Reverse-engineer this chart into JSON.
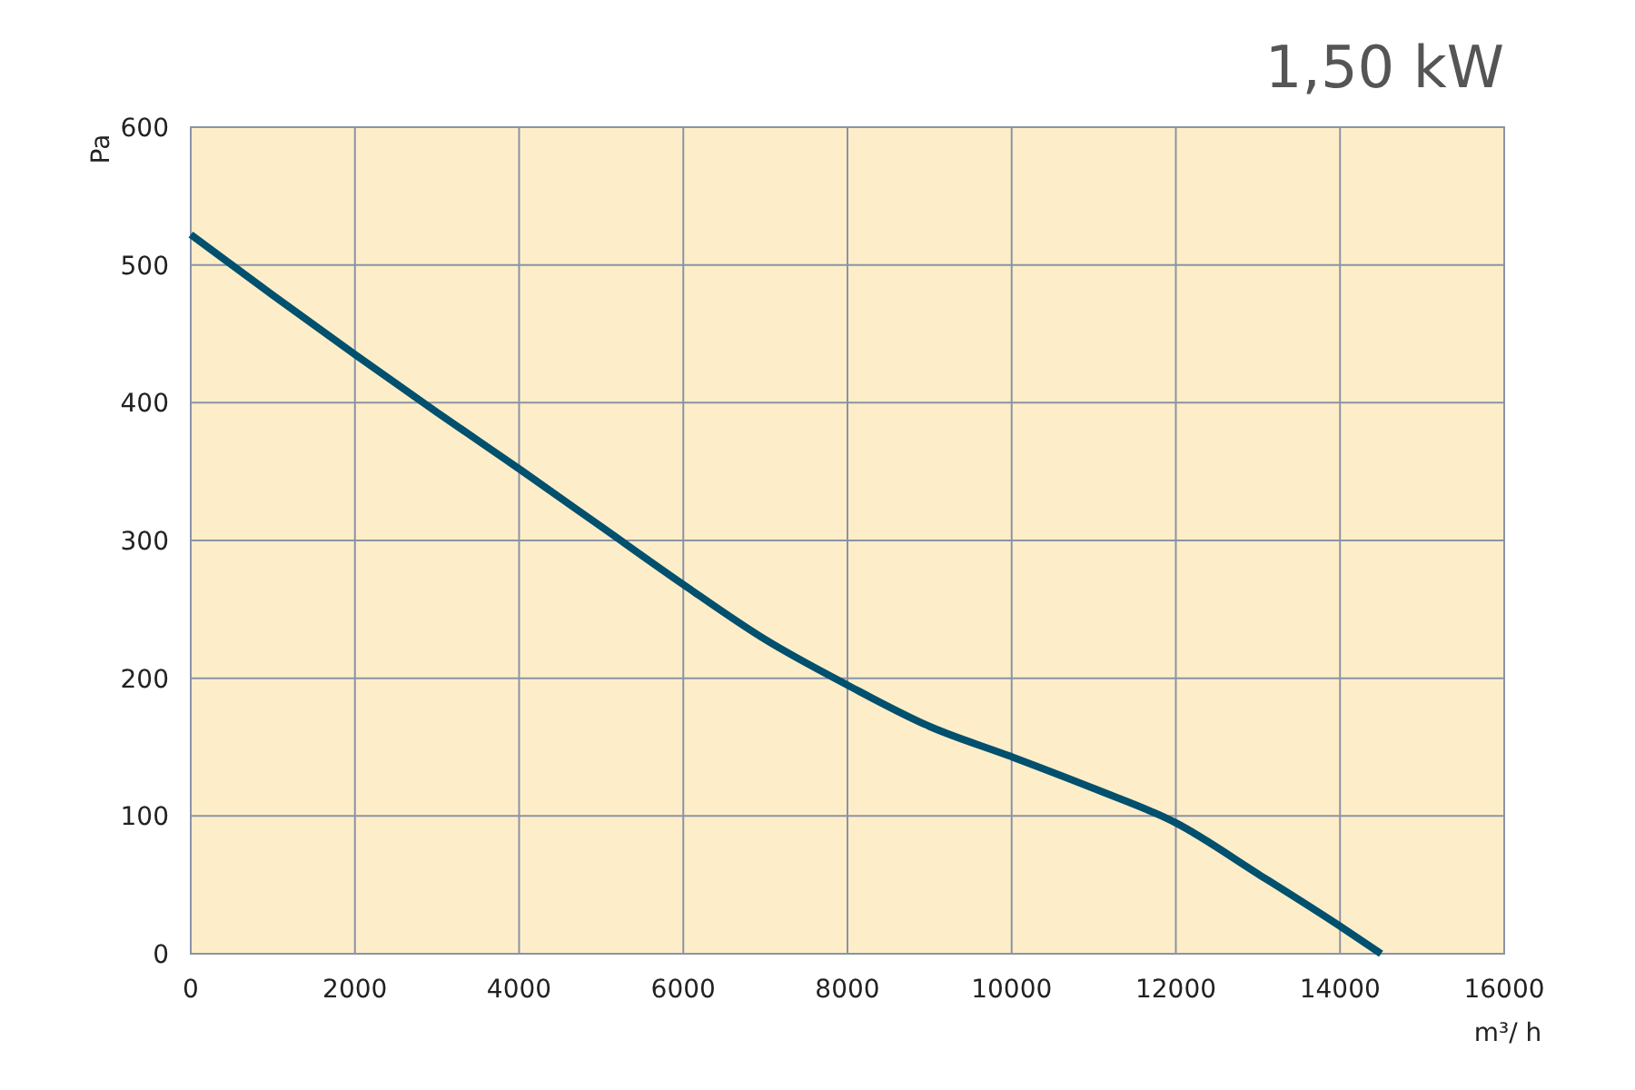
{
  "chart_data": {
    "type": "line",
    "title": "1,50 kW",
    "xlabel": "m³/ h",
    "ylabel": "Pa",
    "x": [
      0,
      1000,
      2000,
      3000,
      4000,
      5000,
      6000,
      7000,
      8000,
      9000,
      10000,
      11000,
      12000,
      13000,
      14000,
      14500
    ],
    "series": [
      {
        "color": "#00506e",
        "values": [
          522,
          478,
          435,
          393,
          352,
          310,
          268,
          228,
          195,
          165,
          143,
          120,
          95,
          58,
          20,
          0
        ]
      }
    ],
    "xlim": [
      0,
      16000
    ],
    "xticks": [
      0,
      2000,
      4000,
      6000,
      8000,
      10000,
      12000,
      14000,
      16000
    ],
    "ylim": [
      0,
      600
    ],
    "yticks": [
      0,
      100,
      200,
      300,
      400,
      500,
      600
    ],
    "grid": true,
    "marker": "none",
    "line_style": "solid"
  }
}
